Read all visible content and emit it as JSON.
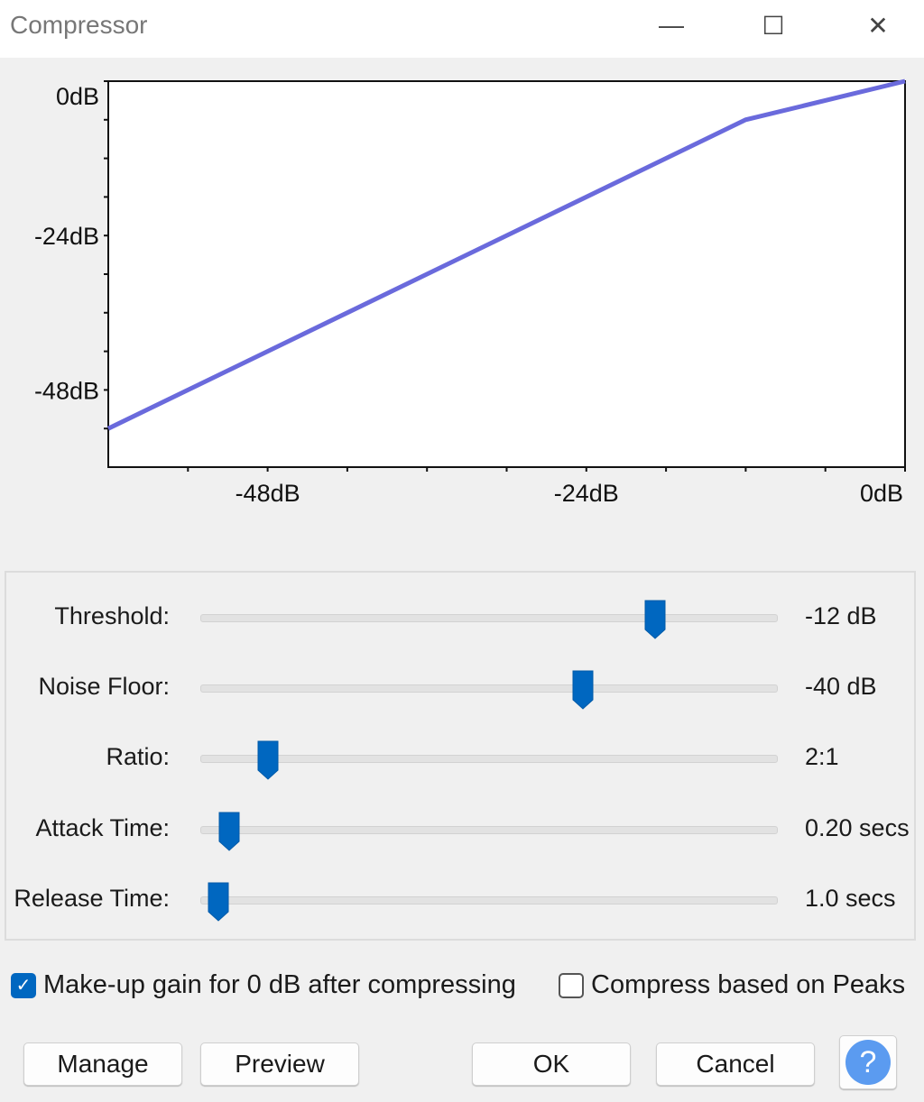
{
  "window": {
    "title": "Compressor",
    "minimize_icon": "minimize-icon",
    "maximize_icon": "maximize-icon",
    "close_icon": "close-icon"
  },
  "chart_data": {
    "type": "line",
    "x_ticks": [
      "-48dB",
      "-24dB",
      "0dB"
    ],
    "y_ticks": [
      "0dB",
      "-24dB",
      "-48dB"
    ],
    "xlim": [
      -60,
      0
    ],
    "ylim": [
      -60,
      0
    ],
    "minor_tick_step_db": 6,
    "line_color": "#6a6adc",
    "series": [
      {
        "x": [
          -60,
          -12,
          0
        ],
        "y": [
          -54,
          -6,
          0
        ]
      }
    ]
  },
  "controls": [
    {
      "label": "Threshold:",
      "value": "-12 dB",
      "position": 0.8
    },
    {
      "label": "Noise Floor:",
      "value": "-40 dB",
      "position": 0.67
    },
    {
      "label": "Ratio:",
      "value": "2:1",
      "position": 0.1
    },
    {
      "label": "Attack Time:",
      "value": "0.20 secs",
      "position": 0.03
    },
    {
      "label": "Release Time:",
      "value": "1.0 secs",
      "position": 0.01
    }
  ],
  "accent": "#0067c0",
  "checkboxes": {
    "makeup": {
      "label": "Make-up gain for 0 dB after compressing",
      "checked": true
    },
    "peaks": {
      "label": "Compress based on Peaks",
      "checked": false
    }
  },
  "buttons": {
    "manage": "Manage",
    "preview": "Preview",
    "ok": "OK",
    "cancel": "Cancel",
    "help": "?"
  }
}
